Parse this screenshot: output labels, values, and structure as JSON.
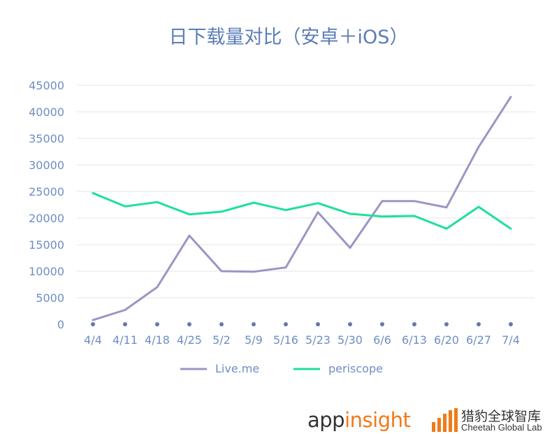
{
  "chart_data": {
    "type": "line",
    "title": "日下载量对比（安卓＋iOS）",
    "xlabel": "",
    "ylabel": "",
    "categories": [
      "4/4",
      "4/11",
      "4/18",
      "4/25",
      "5/2",
      "5/9",
      "5/16",
      "5/23",
      "5/30",
      "6/6",
      "6/13",
      "6/20",
      "6/27",
      "7/4"
    ],
    "yticks": [
      "0",
      "5000",
      "10000",
      "15000",
      "20000",
      "25000",
      "30000",
      "35000",
      "40000",
      "45000"
    ],
    "ylim": [
      0,
      45000
    ],
    "grid": true,
    "legend_position": "bottom",
    "series": [
      {
        "name": "Live.me",
        "color": "#9b95c4",
        "values": [
          800,
          2700,
          7000,
          16700,
          10000,
          9900,
          10700,
          21100,
          14400,
          23200,
          23200,
          22000,
          33400,
          42800
        ]
      },
      {
        "name": "periscope",
        "color": "#1ee09a",
        "values": [
          24700,
          22200,
          23000,
          20700,
          21200,
          22900,
          21500,
          22800,
          20800,
          20300,
          20400,
          18000,
          22100,
          18000
        ]
      }
    ],
    "colors": {
      "title": "#5b7db8",
      "axis_text": "#6e8ec4",
      "grid": "#e6e6e6",
      "baseline_dot": "#6576b0"
    }
  },
  "logos": {
    "appinsight_prefix": "app",
    "appinsight_accent": "insight",
    "cheetah_cn": "猎豹全球智库",
    "cheetah_en": "Cheetah Global Lab"
  }
}
